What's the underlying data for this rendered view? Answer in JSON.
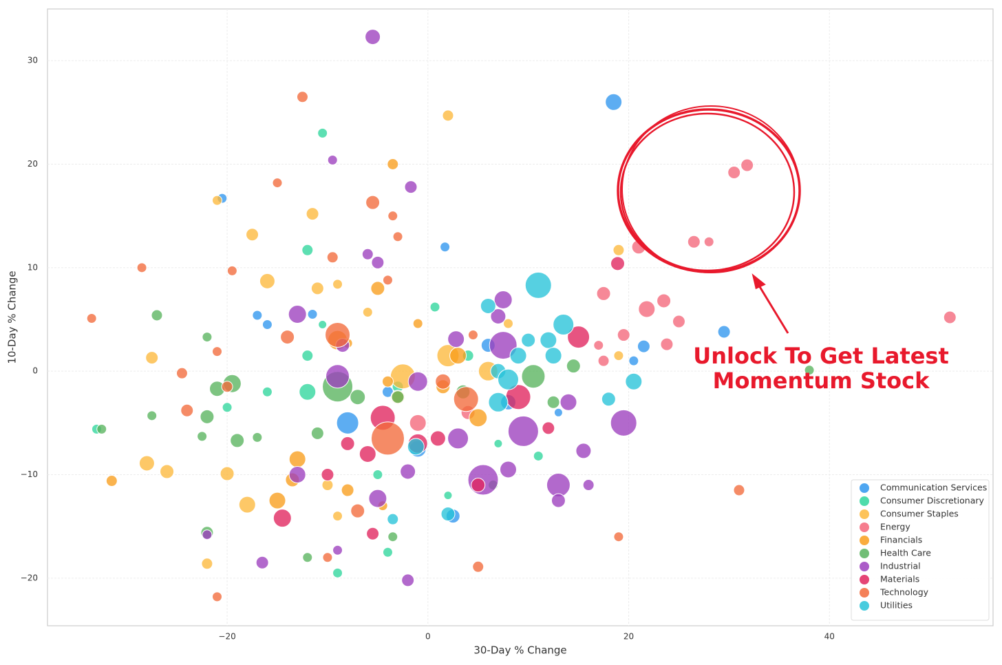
{
  "chart_data": {
    "type": "scatter",
    "xlabel": "30-Day % Change",
    "ylabel": "10-Day % Change",
    "xlim": [
      -37.9,
      56.3
    ],
    "ylim": [
      -24.6,
      35
    ],
    "xticks": [
      {
        "value": -20,
        "label": "−20"
      },
      0,
      20,
      40
    ],
    "yticks": [
      {
        "value": -20,
        "label": "−20"
      },
      {
        "value": -10,
        "label": "−10"
      },
      0,
      10,
      20,
      30
    ],
    "grid": true,
    "legend": "lower right",
    "annotation": [
      "Unlock To Get Latest",
      "Momentum Stock"
    ],
    "series": [
      {
        "name": "Communication Services",
        "color": "#2f96ee",
        "x": [
          18.5,
          -20.5,
          1.7,
          -17,
          29.5,
          21.5,
          20.5,
          -11.5,
          13,
          -4,
          -8,
          -1,
          6,
          8,
          2.5,
          -16
        ],
        "y": [
          26,
          16.7,
          12,
          5.4,
          3.8,
          2.4,
          1,
          5.5,
          -4,
          -2,
          -5,
          -7.5,
          2.5,
          -3,
          -14,
          4.5
        ],
        "sizes": [
          12,
          7,
          7,
          7,
          9,
          9,
          7,
          7,
          6,
          8,
          16,
          12,
          10,
          11,
          10,
          7
        ]
      },
      {
        "name": "Consumer Discretionary",
        "color": "#2fd69c",
        "x": [
          -10.5,
          -12,
          -10.5,
          -12,
          -16,
          -20,
          -33,
          -12,
          0.7,
          -3,
          -9,
          -4,
          11,
          -5,
          2,
          7,
          4
        ],
        "y": [
          23,
          11.7,
          4.5,
          1.5,
          -2,
          -3.5,
          -5.6,
          -2,
          6.2,
          -1.5,
          -19.5,
          -17.5,
          -8.2,
          -10,
          -12,
          -7,
          1.5
        ],
        "sizes": [
          7,
          8,
          6,
          8,
          7,
          7,
          7,
          12,
          7,
          8,
          7,
          7,
          7,
          7,
          6,
          6,
          8
        ]
      },
      {
        "name": "Consumer Staples",
        "color": "#fdb93c",
        "x": [
          -21,
          2,
          -11.5,
          -17.5,
          -16,
          19,
          -11,
          -9,
          -27.5,
          -28,
          -26,
          -20,
          -18,
          -22,
          -9,
          -6,
          2,
          -2.5,
          6,
          19,
          -10,
          8
        ],
        "y": [
          16.5,
          24.7,
          15.2,
          13.2,
          8.7,
          11.7,
          8,
          8.4,
          1.3,
          -8.9,
          -9.7,
          -9.9,
          -12.9,
          -18.6,
          -14,
          5.7,
          1.5,
          -0.5,
          0,
          1.5,
          -11,
          4.6
        ],
        "sizes": [
          7,
          8,
          9,
          9,
          11,
          8,
          9,
          7,
          9,
          11,
          10,
          10,
          12,
          8,
          7,
          7,
          16,
          18,
          14,
          7,
          8,
          7
        ]
      },
      {
        "name": "Energy",
        "color": "#f4667a",
        "x": [
          31.8,
          30.5,
          26.5,
          28,
          21,
          17.5,
          21.8,
          23.5,
          25,
          23.8,
          52,
          19.5,
          17,
          17.5,
          4,
          -1
        ],
        "y": [
          19.9,
          19.2,
          12.5,
          12.5,
          12,
          7.5,
          6,
          6.8,
          4.8,
          2.6,
          5.2,
          3.5,
          2.5,
          1,
          -4,
          -5
        ],
        "sizes": [
          9,
          9,
          9,
          7,
          10,
          10,
          12,
          10,
          9,
          9,
          9,
          9,
          7,
          8,
          10,
          12
        ]
      },
      {
        "name": "Financials",
        "color": "#f99e1c",
        "x": [
          -3.5,
          -5,
          -1,
          -9,
          -8,
          3,
          -3,
          5,
          -13,
          -15,
          -13.5,
          -8,
          -4,
          1.5,
          -4.5,
          -31.5
        ],
        "y": [
          20,
          8,
          4.6,
          3,
          2.7,
          1.5,
          -2.5,
          -4.5,
          -8.5,
          -12.5,
          -10.5,
          -11.5,
          -1,
          -1.5,
          -13,
          -10.6
        ],
        "sizes": [
          8,
          10,
          7,
          14,
          7,
          12,
          10,
          13,
          12,
          12,
          10,
          9,
          8,
          10,
          7,
          8
        ]
      },
      {
        "name": "Health Care",
        "color": "#58b35e",
        "x": [
          -27,
          -22,
          -21,
          -19.5,
          -22,
          -27.5,
          -32.5,
          -22.5,
          -19,
          -17,
          -22,
          -9,
          -7,
          -3,
          3.5,
          10.5,
          14.5,
          12.5,
          -12,
          -3.5,
          38,
          6.5,
          -11
        ],
        "y": [
          5.4,
          3.3,
          -1.7,
          -1.2,
          -4.4,
          -4.3,
          -5.6,
          -6.3,
          -6.7,
          -6.4,
          -15.6,
          -1.5,
          -2.5,
          -2.5,
          -2,
          -0.5,
          0.5,
          -3,
          -18,
          -16,
          0.1,
          -11,
          -6
        ],
        "sizes": [
          8,
          7,
          11,
          13,
          10,
          7,
          7,
          7,
          10,
          7,
          9,
          22,
          11,
          9,
          10,
          17,
          10,
          9,
          7,
          7,
          7,
          7,
          9
        ]
      },
      {
        "name": "Industrial",
        "color": "#9c3fbe",
        "x": [
          -5.5,
          -9.5,
          -1.7,
          -6,
          -5,
          -13,
          -9,
          -8.5,
          2.8,
          7.5,
          7,
          7.5,
          9.5,
          14,
          15.5,
          19.5,
          5.5,
          8,
          13,
          13,
          16,
          -13,
          -16.5,
          -22,
          -2,
          -9,
          -5,
          -1,
          3,
          -2
        ],
        "y": [
          32.3,
          20.4,
          17.8,
          11.3,
          10.5,
          5.5,
          -0.5,
          2.5,
          3.1,
          6.9,
          5.3,
          2.5,
          -5.8,
          -3,
          -7.7,
          -5,
          -10.5,
          -9.5,
          -11,
          -12.5,
          -11,
          -10,
          -18.5,
          -15.8,
          -20.2,
          -17.3,
          -12.3,
          -1,
          -6.5,
          -9.7
        ],
        "sizes": [
          11,
          7,
          9,
          8,
          9,
          13,
          17,
          10,
          12,
          13,
          11,
          20,
          22,
          12,
          11,
          19,
          22,
          12,
          17,
          10,
          8,
          12,
          9,
          7,
          9,
          7,
          13,
          14,
          15,
          11
        ]
      },
      {
        "name": "Materials",
        "color": "#e0245e",
        "x": [
          18.9,
          15,
          -14.5,
          -1,
          5,
          9,
          -4.5,
          -8,
          -10,
          -5.5,
          12,
          -6,
          1
        ],
        "y": [
          10.4,
          3.3,
          -14.2,
          -7,
          -11,
          -2.5,
          -4.5,
          -7,
          -10,
          -15.7,
          -5.5,
          -8,
          -6.5
        ],
        "sizes": [
          10,
          16,
          13,
          14,
          10,
          18,
          18,
          10,
          9,
          9,
          9,
          12,
          11
        ]
      },
      {
        "name": "Technology",
        "color": "#f26a3b",
        "x": [
          -12.5,
          -15,
          -5.5,
          -33.5,
          -28.5,
          -19.5,
          -3.5,
          -3,
          -9.5,
          -4,
          -14,
          -21,
          -24.5,
          -24,
          -20,
          -9,
          -4,
          3.8,
          1.5,
          31,
          19,
          5,
          -21,
          -7,
          4.5,
          -10
        ],
        "y": [
          26.5,
          18.2,
          16.3,
          5.1,
          10,
          9.7,
          15,
          13,
          11,
          8.8,
          3.3,
          1.9,
          -0.2,
          -3.8,
          -1.5,
          3.5,
          -6.5,
          -2.7,
          -1,
          -11.5,
          -16,
          -18.9,
          -21.8,
          -13.5,
          3.5,
          -18
        ],
        "sizes": [
          8,
          7,
          10,
          7,
          7,
          7,
          7,
          7,
          8,
          7,
          10,
          7,
          8,
          9,
          8,
          18,
          24,
          18,
          11,
          8,
          7,
          8,
          7,
          10,
          7,
          7
        ]
      },
      {
        "name": "Utilities",
        "color": "#27c3d8",
        "x": [
          11,
          6,
          13.5,
          12,
          12.5,
          7,
          8,
          9,
          20.5,
          18,
          -1.2,
          2,
          -3.5,
          7,
          10
        ],
        "y": [
          8.3,
          6.3,
          4.5,
          3,
          1.5,
          0,
          -0.8,
          1.5,
          -1,
          -2.7,
          -7.3,
          -13.8,
          -14.3,
          -3,
          3
        ],
        "sizes": [
          19,
          11,
          15,
          12,
          12,
          11,
          15,
          12,
          12,
          10,
          12,
          10,
          8,
          14,
          10
        ]
      }
    ]
  }
}
